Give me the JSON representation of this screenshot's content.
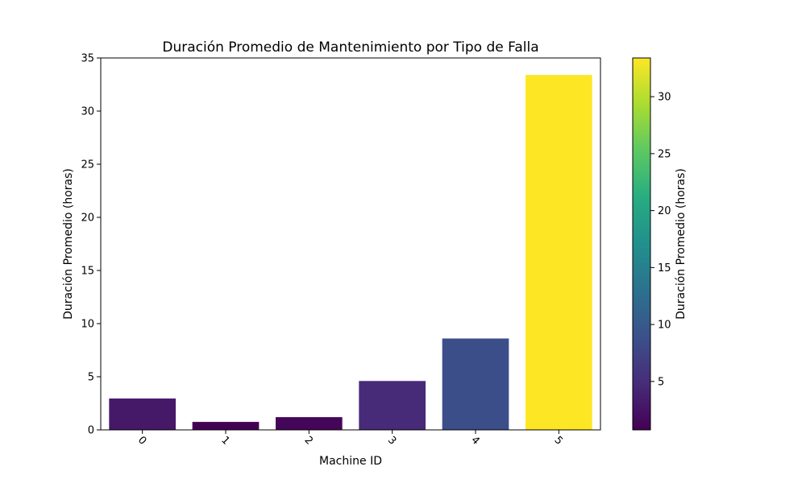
{
  "chart_data": {
    "type": "bar",
    "title": "Duración Promedio de Mantenimiento por Tipo de Falla",
    "xlabel": "Machine ID",
    "ylabel": "Duración Promedio (horas)",
    "categories": [
      "0",
      "1",
      "2",
      "3",
      "4",
      "5"
    ],
    "values": [
      2.95,
      0.75,
      1.2,
      4.6,
      8.6,
      33.4
    ],
    "ylim": [
      0,
      35
    ],
    "yticks": [
      0,
      5,
      10,
      15,
      20,
      25,
      30,
      35
    ],
    "xtick_rotation_deg": 45,
    "grid": false,
    "colormap": "viridis",
    "colorbar": {
      "label": "Duración Promedio (horas)",
      "range": [
        0.75,
        33.4
      ],
      "ticks": [
        5,
        10,
        15,
        20,
        25,
        30
      ]
    }
  }
}
